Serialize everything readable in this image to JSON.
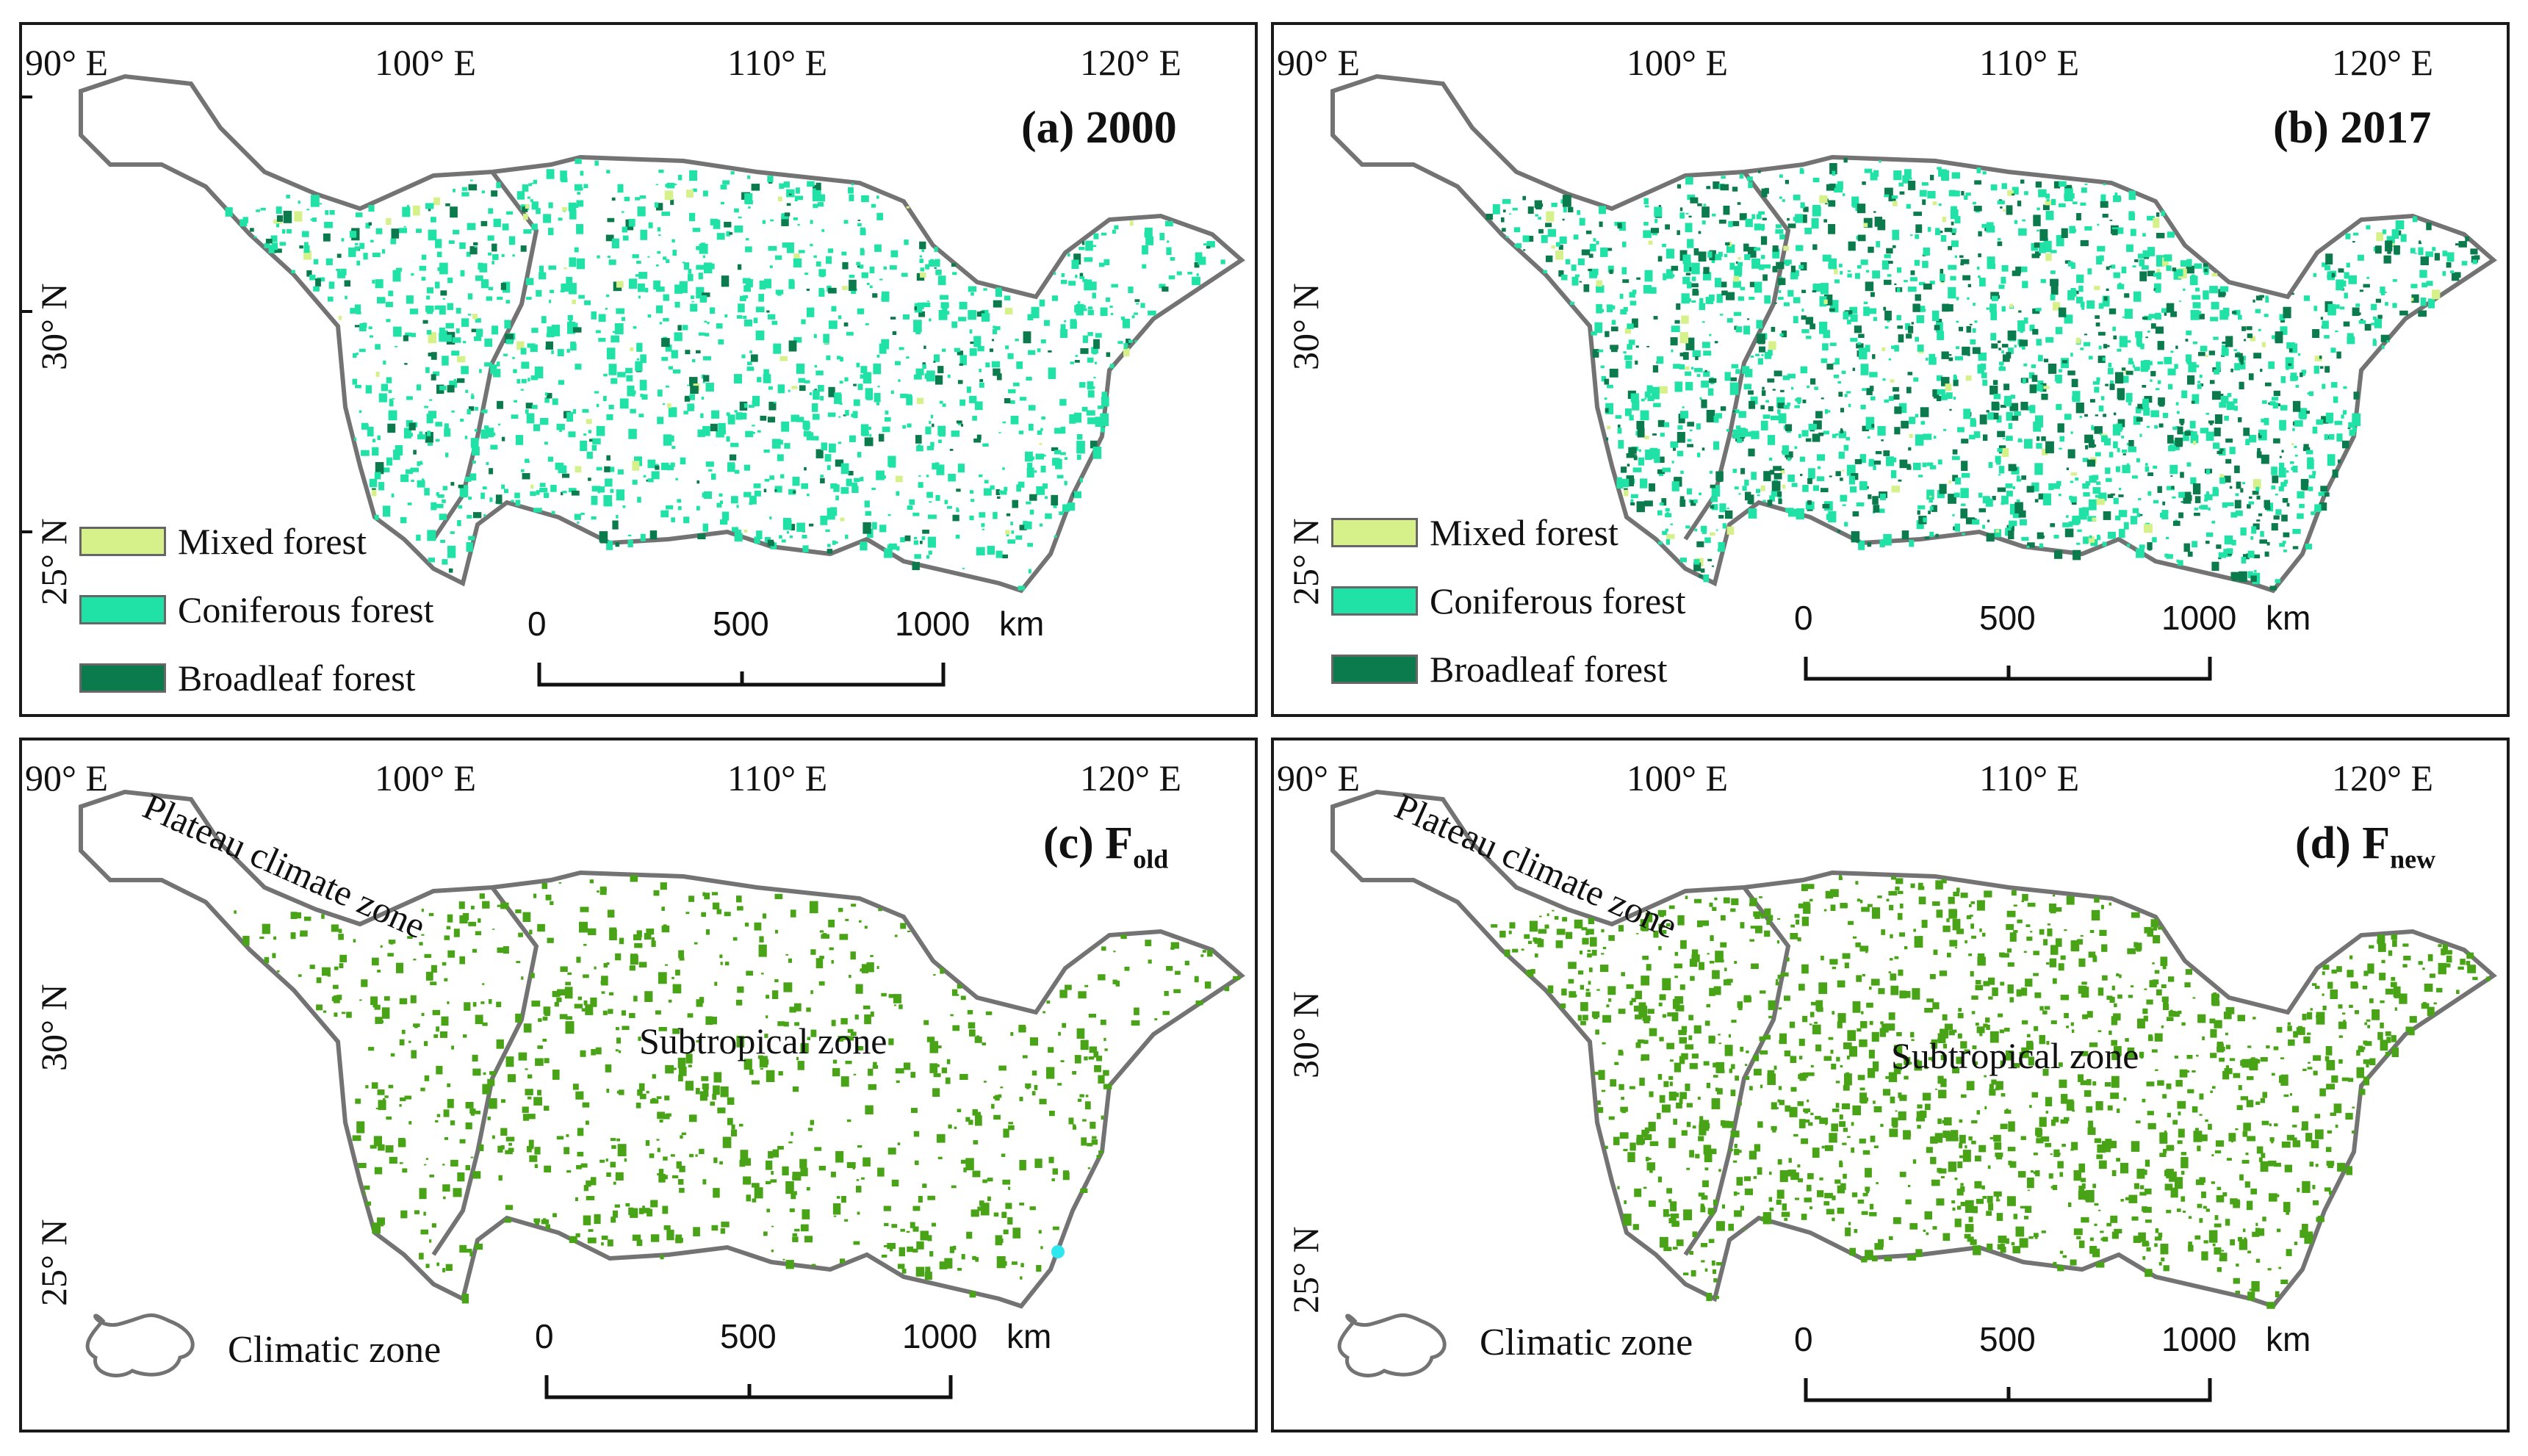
{
  "colors": {
    "mixed": "#d6f08a",
    "coniferous": "#21e2a6",
    "broadleaf": "#0b7a4d",
    "green_dots": "#48a416",
    "outline": "#737373"
  },
  "longitudes": [
    "90° E",
    "100° E",
    "110° E",
    "120° E"
  ],
  "latitudes": [
    "30° N",
    "25° N"
  ],
  "legend": {
    "mixed": "Mixed forest",
    "coniferous": "Coniferous forest",
    "broadleaf": "Broadleaf forest",
    "climatic": "Climatic zone"
  },
  "scale": {
    "zero": "0",
    "mid": "500",
    "end": "1000",
    "unit": "km"
  },
  "zones": {
    "plateau": "Plateau climate zone",
    "subtropical": "Subtropical zone"
  },
  "panels": {
    "a": {
      "title": "(a) 2000"
    },
    "b": {
      "title": "(b) 2017"
    },
    "c": {
      "title_prefix": "(c) F",
      "title_sub": "old"
    },
    "d": {
      "title_prefix": "(d) F",
      "title_sub": "new"
    }
  }
}
